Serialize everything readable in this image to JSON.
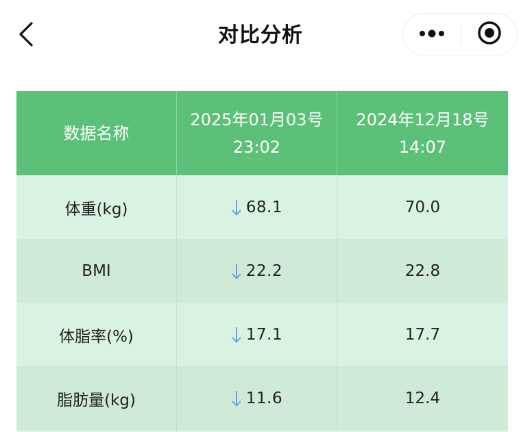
{
  "nav": {
    "title": "对比分析",
    "back_icon": "chevron-left-icon",
    "more_icon": "more-dots-icon",
    "close_icon": "target-circle-icon"
  },
  "table": {
    "headers": {
      "name": "数据名称",
      "date1_line1": "2025年01月03号",
      "date1_line2": "23:02",
      "date2_line1": "2024年12月18号",
      "date2_line2": "14:07"
    },
    "rows": [
      {
        "name": "体重(kg)",
        "current": "68.1",
        "previous": "70.0",
        "trend": "down"
      },
      {
        "name": "BMI",
        "current": "22.2",
        "previous": "22.8",
        "trend": "down"
      },
      {
        "name": "体脂率(%)",
        "current": "17.1",
        "previous": "17.7",
        "trend": "down"
      },
      {
        "name": "脂肪量(kg)",
        "current": "11.6",
        "previous": "12.4",
        "trend": "down"
      }
    ]
  },
  "colors": {
    "header_bg": "#5cc079",
    "row_bg_odd": "#d9f2e1",
    "row_bg_even": "#cfead7",
    "arrow": "#6f9ce6"
  }
}
